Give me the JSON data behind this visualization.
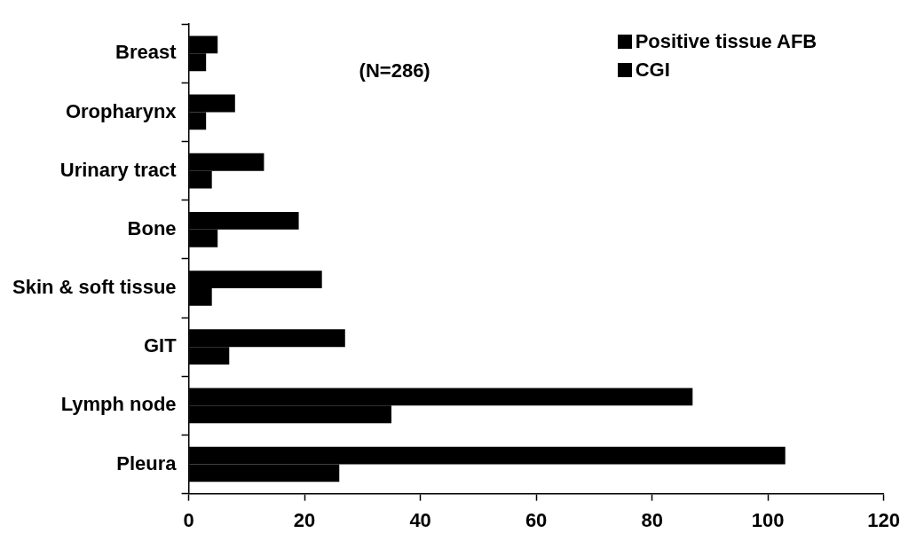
{
  "chart_data": {
    "type": "bar",
    "orientation": "horizontal",
    "categories": [
      "Breast",
      "Oropharynx",
      "Urinary tract",
      "Bone",
      "Skin & soft tissue",
      "GIT",
      "Lymph node",
      "Pleura"
    ],
    "series": [
      {
        "name": "Positive tissue AFB",
        "color": "#000000",
        "values": [
          5,
          8,
          13,
          19,
          23,
          27,
          87,
          103
        ]
      },
      {
        "name": "CGI",
        "color": "#000000",
        "values": [
          3,
          3,
          4,
          5,
          4,
          7,
          35,
          26
        ]
      }
    ],
    "xlim": [
      0,
      120
    ],
    "xticks": [
      0,
      20,
      40,
      60,
      80,
      100,
      120
    ],
    "grid": false,
    "legend": "top right",
    "annotations": [
      "(N=286)"
    ]
  }
}
